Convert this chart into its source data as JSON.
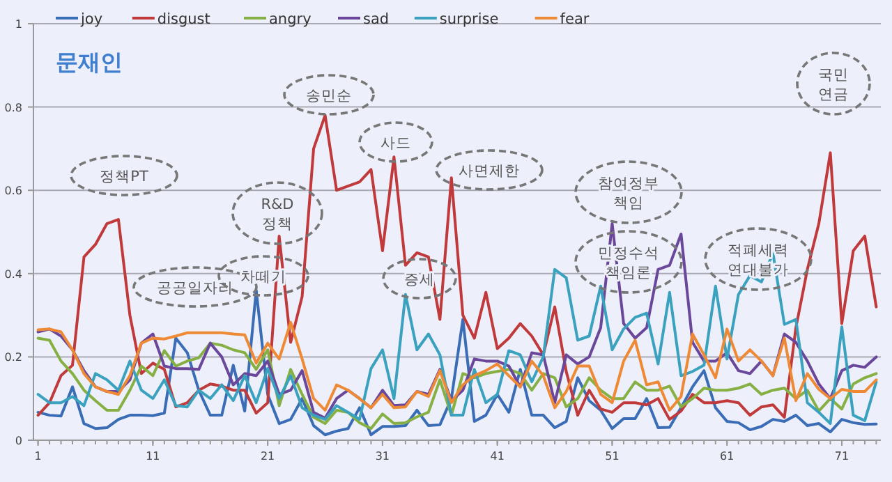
{
  "chart_data": {
    "type": "line",
    "title": "문재인",
    "x": [
      1,
      2,
      3,
      4,
      5,
      6,
      7,
      8,
      9,
      10,
      11,
      12,
      13,
      14,
      15,
      16,
      17,
      18,
      19,
      20,
      21,
      22,
      23,
      24,
      25,
      26,
      27,
      28,
      29,
      30,
      31,
      32,
      33,
      34,
      35,
      36,
      37,
      38,
      39,
      40,
      41,
      42,
      43,
      44,
      45,
      46,
      47,
      48,
      49,
      50,
      51,
      52,
      53,
      54,
      55,
      56,
      57,
      58,
      59,
      60,
      61,
      62,
      63,
      64,
      65,
      66,
      67,
      68,
      69,
      70,
      71,
      72,
      73,
      74
    ],
    "series": [
      {
        "name": "joy",
        "color": "#3a6db5",
        "values": [
          0.067,
          0.06,
          0.058,
          0.128,
          0.04,
          0.028,
          0.03,
          0.05,
          0.06,
          0.06,
          0.059,
          0.065,
          0.245,
          0.21,
          0.12,
          0.06,
          0.06,
          0.18,
          0.07,
          0.36,
          0.11,
          0.04,
          0.05,
          0.1,
          0.035,
          0.013,
          0.022,
          0.028,
          0.078,
          0.013,
          0.033,
          0.033,
          0.035,
          0.072,
          0.035,
          0.037,
          0.1,
          0.29,
          0.045,
          0.06,
          0.11,
          0.067,
          0.17,
          0.06,
          0.06,
          0.03,
          0.045,
          0.15,
          0.095,
          0.072,
          0.028,
          0.052,
          0.052,
          0.1,
          0.03,
          0.031,
          0.078,
          0.128,
          0.167,
          0.078,
          0.045,
          0.042,
          0.025,
          0.033,
          0.05,
          0.045,
          0.06,
          0.035,
          0.04,
          0.02,
          0.05,
          0.042,
          0.038,
          0.039
        ]
      },
      {
        "name": "disgust",
        "color": "#c0393b",
        "values": [
          0.06,
          0.09,
          0.155,
          0.18,
          0.44,
          0.47,
          0.52,
          0.53,
          0.3,
          0.16,
          0.185,
          0.17,
          0.08,
          0.09,
          0.12,
          0.135,
          0.13,
          0.12,
          0.12,
          0.065,
          0.09,
          0.49,
          0.235,
          0.345,
          0.7,
          0.78,
          0.6,
          0.61,
          0.62,
          0.65,
          0.455,
          0.68,
          0.42,
          0.45,
          0.44,
          0.29,
          0.63,
          0.3,
          0.245,
          0.355,
          0.22,
          0.245,
          0.28,
          0.25,
          0.205,
          0.32,
          0.165,
          0.06,
          0.12,
          0.075,
          0.067,
          0.09,
          0.09,
          0.085,
          0.1,
          0.05,
          0.07,
          0.11,
          0.09,
          0.09,
          0.095,
          0.09,
          0.06,
          0.08,
          0.085,
          0.055,
          0.27,
          0.41,
          0.52,
          0.69,
          0.28,
          0.455,
          0.49,
          0.32
        ]
      },
      {
        "name": "angry",
        "color": "#86b043",
        "values": [
          0.245,
          0.24,
          0.19,
          0.16,
          0.12,
          0.095,
          0.072,
          0.072,
          0.12,
          0.178,
          0.155,
          0.215,
          0.178,
          0.19,
          0.198,
          0.233,
          0.228,
          0.217,
          0.21,
          0.17,
          0.217,
          0.083,
          0.17,
          0.11,
          0.055,
          0.04,
          0.072,
          0.067,
          0.042,
          0.028,
          0.063,
          0.04,
          0.042,
          0.056,
          0.067,
          0.145,
          0.06,
          0.16,
          0.15,
          0.16,
          0.165,
          0.17,
          0.16,
          0.12,
          0.16,
          0.15,
          0.08,
          0.1,
          0.15,
          0.12,
          0.1,
          0.1,
          0.14,
          0.12,
          0.12,
          0.13,
          0.08,
          0.1,
          0.125,
          0.12,
          0.12,
          0.125,
          0.135,
          0.11,
          0.12,
          0.125,
          0.1,
          0.12,
          0.07,
          0.1,
          0.075,
          0.135,
          0.15,
          0.16
        ]
      },
      {
        "name": "sad",
        "color": "#6a479a",
        "values": [
          0.26,
          0.267,
          0.25,
          0.217,
          0.167,
          0.128,
          0.117,
          0.117,
          0.145,
          0.233,
          0.255,
          0.178,
          0.172,
          0.172,
          0.17,
          0.233,
          0.2,
          0.133,
          0.16,
          0.155,
          0.19,
          0.11,
          0.12,
          0.167,
          0.067,
          0.053,
          0.1,
          0.12,
          0.1,
          0.078,
          0.12,
          0.083,
          0.085,
          0.117,
          0.11,
          0.17,
          0.095,
          0.12,
          0.195,
          0.19,
          0.19,
          0.178,
          0.128,
          0.21,
          0.205,
          0.09,
          0.205,
          0.183,
          0.2,
          0.27,
          0.52,
          0.28,
          0.245,
          0.27,
          0.41,
          0.42,
          0.495,
          0.235,
          0.19,
          0.19,
          0.21,
          0.167,
          0.16,
          0.19,
          0.155,
          0.255,
          0.235,
          0.19,
          0.135,
          0.1,
          0.167,
          0.18,
          0.175,
          0.2
        ]
      },
      {
        "name": "surprise",
        "color": "#3aa1bf",
        "values": [
          0.11,
          0.09,
          0.09,
          0.105,
          0.083,
          0.16,
          0.145,
          0.12,
          0.19,
          0.12,
          0.1,
          0.145,
          0.083,
          0.08,
          0.12,
          0.1,
          0.133,
          0.095,
          0.155,
          0.09,
          0.172,
          0.1,
          0.155,
          0.078,
          0.06,
          0.05,
          0.083,
          0.067,
          0.05,
          0.172,
          0.217,
          0.1,
          0.35,
          0.217,
          0.255,
          0.205,
          0.06,
          0.06,
          0.17,
          0.09,
          0.11,
          0.215,
          0.205,
          0.14,
          0.2,
          0.41,
          0.39,
          0.24,
          0.25,
          0.37,
          0.217,
          0.267,
          0.295,
          0.305,
          0.183,
          0.355,
          0.155,
          0.165,
          0.18,
          0.37,
          0.195,
          0.35,
          0.395,
          0.38,
          0.45,
          0.278,
          0.29,
          0.09,
          0.067,
          0.04,
          0.272,
          0.06,
          0.047,
          0.14
        ]
      },
      {
        "name": "fear",
        "color": "#ee8a35",
        "values": [
          0.265,
          0.267,
          0.26,
          0.217,
          0.16,
          0.128,
          0.117,
          0.11,
          0.155,
          0.233,
          0.245,
          0.243,
          0.25,
          0.258,
          0.258,
          0.258,
          0.258,
          0.255,
          0.253,
          0.185,
          0.233,
          0.195,
          0.283,
          0.195,
          0.1,
          0.072,
          0.133,
          0.12,
          0.1,
          0.078,
          0.11,
          0.078,
          0.08,
          0.117,
          0.105,
          0.167,
          0.09,
          0.133,
          0.155,
          0.167,
          0.183,
          0.155,
          0.128,
          0.19,
          0.155,
          0.078,
          0.117,
          0.178,
          0.178,
          0.11,
          0.09,
          0.19,
          0.24,
          0.133,
          0.14,
          0.072,
          0.105,
          0.255,
          0.205,
          0.15,
          0.267,
          0.19,
          0.217,
          0.19,
          0.155,
          0.245,
          0.095,
          0.16,
          0.122,
          0.1,
          0.122,
          0.117,
          0.117,
          0.145
        ]
      }
    ],
    "xlim": [
      0.6,
      74.4
    ],
    "xticks": [
      1,
      11,
      21,
      31,
      41,
      51,
      61,
      71
    ],
    "ylim": [
      0,
      1
    ],
    "yticks": [
      0,
      0.2,
      0.4,
      0.6,
      0.8,
      1
    ],
    "grid": "y",
    "legend": "top left",
    "marker": "none",
    "line_style": "solid",
    "annotations": [
      "정책PT",
      "공공일자리",
      "차떼기",
      "R&D\n정책",
      "송민순",
      "사드",
      "증세",
      "사면제한",
      "참여정부\n책임",
      "민정수석\n책임론",
      "적폐세력\n연대불가",
      "국민\n연금"
    ]
  }
}
